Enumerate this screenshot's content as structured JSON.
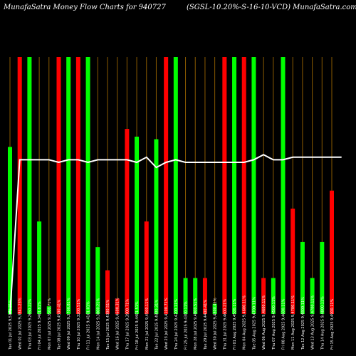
{
  "title_left": "MunafaSatra  Money Flow  Charts for 940727",
  "title_right": "(SGSL-10.20%-S-16-10-VCD) MunafaSatra.com",
  "chart_data": {
    "type": "bar",
    "ylim": [
      0,
      100
    ],
    "colors": {
      "up": "#00ff00",
      "down": "#ff0000",
      "grid": "#8a5a00",
      "line": "#ffffff",
      "background": "#000000"
    },
    "bars": [
      {
        "label": "Tue 01 Jul 2025 9,5171.31%",
        "value": 65,
        "color": "up"
      },
      {
        "label": "Wed 02 Jul 2025 9,3841.23%",
        "value": 100,
        "color": "down"
      },
      {
        "label": "Thu 03 Jul 2025 9,2650.22%",
        "value": 100,
        "color": "up"
      },
      {
        "label": "Fri 04 Jul 2025 9,3401.81%",
        "value": 36,
        "color": "up"
      },
      {
        "label": "Mon 07 Jul 2025 9,3500.71%",
        "value": 3,
        "color": "up"
      },
      {
        "label": "Tue 08 Jul 2025 9,4500.41%",
        "value": 100,
        "color": "down"
      },
      {
        "label": "Wed 09 Jul 2025 9,3700.81%",
        "value": 100,
        "color": "up"
      },
      {
        "label": "Thu 10 Jul 2025 9,3200.51%",
        "value": 100,
        "color": "down"
      },
      {
        "label": "Fri 11 Jul 2025 9,4101.01%",
        "value": 100,
        "color": "up"
      },
      {
        "label": "Mon 14 Jul 2025 9,3800.21%",
        "value": 26,
        "color": "up"
      },
      {
        "label": "Tue 15 Jul 2025 9,4300.51%",
        "value": 17,
        "color": "down"
      },
      {
        "label": "Wed 16 Jul 2025 9,4600.31%",
        "value": 6,
        "color": "down"
      },
      {
        "label": "Thu 17 Jul 2025 9,3900.71%",
        "value": 72,
        "color": "down"
      },
      {
        "label": "Fri 18 Jul 2025 9,4401.51%",
        "value": 69,
        "color": "up"
      },
      {
        "label": "Mon 21 Jul 2025 9,4500.11%",
        "value": 36,
        "color": "down"
      },
      {
        "label": "Tue 22 Jul 2025 9,4800.31%",
        "value": 68,
        "color": "up"
      },
      {
        "label": "Wed 23 Jul 2025 9,4100.71%",
        "value": 100,
        "color": "down"
      },
      {
        "label": "Thu 24 Jul 2025 9,4200.11%",
        "value": 100,
        "color": "up"
      },
      {
        "label": "Fri 25 Jul 2025 9,4300.11%",
        "value": 14,
        "color": "up"
      },
      {
        "label": "Mon 28 Jul 2025 9,4800.51%",
        "value": 14,
        "color": "up"
      },
      {
        "label": "Tue 29 Jul 2025 9,4400.41%",
        "value": 14,
        "color": "down"
      },
      {
        "label": "Wed 30 Jul 2025 9,4800.41%",
        "value": 4,
        "color": "up"
      },
      {
        "label": "Thu 31 Jul 2025 9,4600.21%",
        "value": 100,
        "color": "down"
      },
      {
        "label": "Fri 01 Aug 2025 9,4500.11%",
        "value": 100,
        "color": "up"
      },
      {
        "label": "Mon 04 Aug 2025 9,4600.11%",
        "value": 100,
        "color": "down"
      },
      {
        "label": "Tue 05 Aug 2025 9,4700.11%",
        "value": 100,
        "color": "up"
      },
      {
        "label": "Wed 06 Aug 2025 9,4600.11%",
        "value": 14,
        "color": "down"
      },
      {
        "label": "Thu 07 Aug 2025 9,4500.11%",
        "value": 14,
        "color": "up"
      },
      {
        "label": "Fri 08 Aug 2025 9,4600.11%",
        "value": 100,
        "color": "up"
      },
      {
        "label": "Mon 11 Aug 2025 9,4700.11%",
        "value": 41,
        "color": "down"
      },
      {
        "label": "Tue 12 Aug 2025 9,4800.11%",
        "value": 28,
        "color": "up"
      },
      {
        "label": "Wed 13 Aug 2025 9,4700.11%",
        "value": 14,
        "color": "up"
      },
      {
        "label": "Thu 14 Aug 2025 9,4800.11%",
        "value": 28,
        "color": "up"
      },
      {
        "label": "Fri 15 Aug 2025 9,4900.11%",
        "value": 48,
        "color": "down"
      }
    ],
    "price_line": [
      0,
      60,
      60,
      60,
      60,
      59,
      60,
      60,
      59,
      60,
      60,
      60,
      60,
      59,
      61,
      57,
      59,
      60,
      59,
      59,
      59,
      59,
      59,
      59,
      59,
      60,
      62,
      60,
      60,
      61,
      61,
      61,
      61,
      61,
      61
    ]
  }
}
